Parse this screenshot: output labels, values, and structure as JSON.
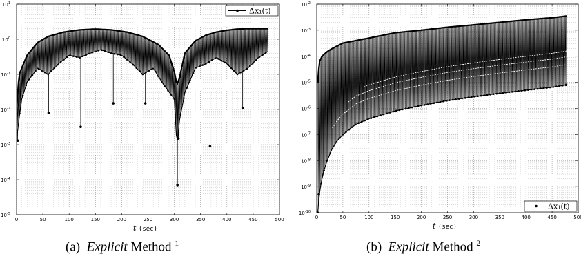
{
  "chart_data": [
    {
      "type": "line",
      "subfigure_label": "(a)",
      "caption_emph": "Explicit",
      "caption_rest": "Method",
      "caption_sup": "1",
      "xlabel_var": "t",
      "xlabel_unit": "(sec)",
      "xlim": [
        0,
        500
      ],
      "x_ticks": [
        "0",
        "50",
        "100",
        "150",
        "200",
        "250",
        "300",
        "350",
        "400",
        "450",
        "500"
      ],
      "yscale": "log",
      "ylim": [
        1e-05,
        10
      ],
      "y_ticks": [
        {
          "base": "10",
          "exp": "1"
        },
        {
          "base": "10",
          "exp": "0"
        },
        {
          "base": "10",
          "exp": "-1"
        },
        {
          "base": "10",
          "exp": "-2"
        },
        {
          "base": "10",
          "exp": "-3"
        },
        {
          "base": "10",
          "exp": "-4"
        },
        {
          "base": "10",
          "exp": "-5"
        }
      ],
      "grid": true,
      "legend_position": "top-right",
      "series": [
        {
          "name": "Δx₁(t)",
          "color": "#000000"
        }
      ],
      "envelope_upper": {
        "x": [
          0,
          5,
          20,
          40,
          60,
          90,
          120,
          150,
          180,
          210,
          240,
          270,
          290,
          300,
          305,
          310,
          320,
          340,
          360,
          380,
          400,
          420,
          440,
          460,
          478
        ],
        "y": [
          0.01,
          0.1,
          0.35,
          0.8,
          1.2,
          1.6,
          1.85,
          1.95,
          1.85,
          1.6,
          1.2,
          0.7,
          0.35,
          0.12,
          0.05,
          0.08,
          0.4,
          0.9,
          1.3,
          1.6,
          1.8,
          1.95,
          2.0,
          2.0,
          2.0
        ]
      },
      "envelope_lower": {
        "x": [
          0,
          5,
          10,
          20,
          40,
          60,
          80,
          100,
          120,
          140,
          160,
          180,
          200,
          220,
          240,
          260,
          280,
          300,
          305,
          310,
          320,
          340,
          360,
          380,
          400,
          420,
          440,
          460,
          478
        ],
        "y": [
          0.0013,
          0.006,
          0.02,
          0.06,
          0.15,
          0.1,
          0.2,
          0.35,
          0.3,
          0.4,
          0.5,
          0.4,
          0.35,
          0.2,
          0.1,
          0.15,
          0.05,
          0.02,
          0.001,
          0.005,
          0.03,
          0.15,
          0.2,
          0.3,
          0.2,
          0.1,
          0.15,
          0.3,
          0.45
        ]
      },
      "dips": [
        {
          "x": 2,
          "y": 0.0013
        },
        {
          "x": 61,
          "y": 0.008
        },
        {
          "x": 122,
          "y": 0.0032
        },
        {
          "x": 184,
          "y": 0.015
        },
        {
          "x": 245,
          "y": 0.015
        },
        {
          "x": 306,
          "y": 7e-05
        },
        {
          "x": 308,
          "y": 0.0015
        },
        {
          "x": 368,
          "y": 0.0009
        },
        {
          "x": 430,
          "y": 0.011
        }
      ]
    },
    {
      "type": "line",
      "subfigure_label": "(b)",
      "caption_emph": "Explicit",
      "caption_rest": "Method",
      "caption_sup": "2",
      "xlabel_var": "t",
      "xlabel_unit": "(sec)",
      "xlim": [
        0,
        500
      ],
      "x_ticks": [
        "0",
        "50",
        "100",
        "150",
        "200",
        "250",
        "300",
        "350",
        "400",
        "450",
        "500"
      ],
      "yscale": "log",
      "ylim": [
        1e-10,
        0.01
      ],
      "y_ticks": [
        {
          "base": "10",
          "exp": "-2"
        },
        {
          "base": "10",
          "exp": "-3"
        },
        {
          "base": "10",
          "exp": "-4"
        },
        {
          "base": "10",
          "exp": "-5"
        },
        {
          "base": "10",
          "exp": "-6"
        },
        {
          "base": "10",
          "exp": "-7"
        },
        {
          "base": "10",
          "exp": "-8"
        },
        {
          "base": "10",
          "exp": "-9"
        },
        {
          "base": "10",
          "exp": "-10"
        }
      ],
      "grid": true,
      "legend_position": "bottom-right",
      "series": [
        {
          "name": "Δx₁(t)",
          "color": "#000000"
        }
      ],
      "envelope_upper": {
        "x": [
          2,
          5,
          10,
          20,
          30,
          50,
          75,
          100,
          150,
          200,
          250,
          300,
          350,
          400,
          450,
          478
        ],
        "y": [
          1e-05,
          6e-05,
          0.0001,
          0.00015,
          0.0002,
          0.00032,
          0.0004,
          0.0005,
          0.0008,
          0.001,
          0.0013,
          0.0016,
          0.002,
          0.0025,
          0.003,
          0.0035
        ]
      },
      "envelope_lower": {
        "x": [
          2,
          4,
          7,
          10,
          15,
          20,
          30,
          40,
          50,
          75,
          100,
          150,
          200,
          250,
          300,
          350,
          400,
          450,
          478
        ],
        "y": [
          1e-10,
          3e-10,
          1e-09,
          2e-09,
          5e-09,
          1e-08,
          3e-08,
          6e-08,
          1e-07,
          2.5e-07,
          4e-07,
          8e-07,
          1.3e-06,
          2e-06,
          2.8e-06,
          3.8e-06,
          5e-06,
          6.5e-06,
          8e-06
        ]
      },
      "bands": [
        {
          "factor": 6,
          "start": 30
        },
        {
          "factor": 12,
          "start": 60
        },
        {
          "factor": 20,
          "start": 90
        }
      ],
      "dips": [
        {
          "x": 2,
          "y": 1e-10
        },
        {
          "x": 4,
          "y": 5e-10
        },
        {
          "x": 477,
          "y": 8e-06
        }
      ]
    }
  ]
}
